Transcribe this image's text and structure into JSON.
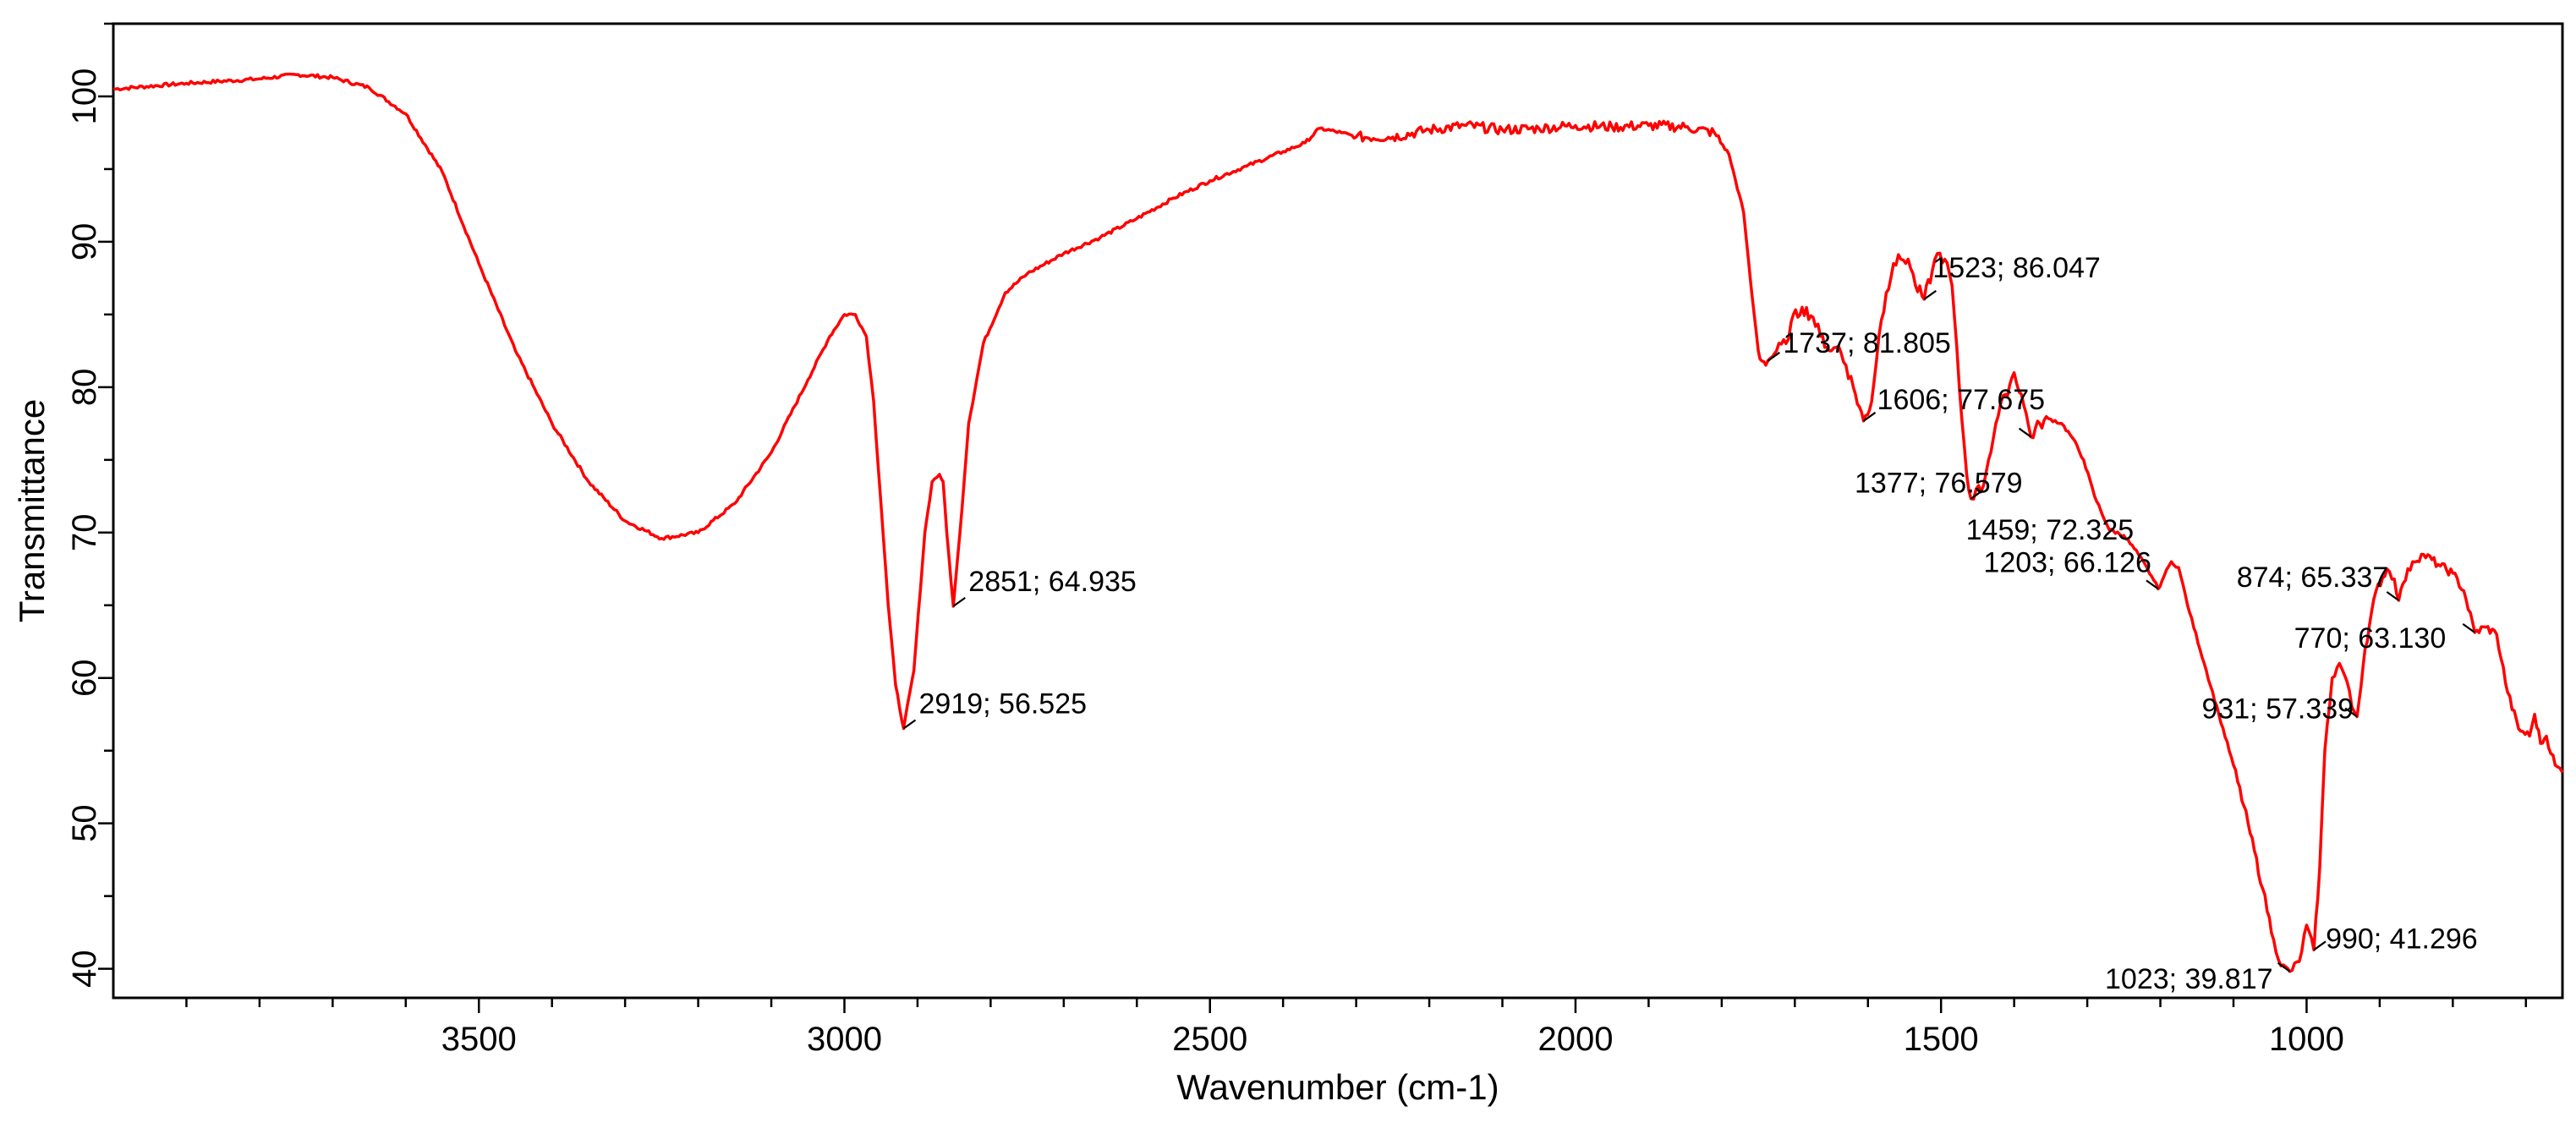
{
  "chart_data": {
    "type": "line",
    "title": "",
    "xlabel": "Wavenumber (cm-1)",
    "ylabel": "Transmittance",
    "xlim": [
      4000,
      650
    ],
    "ylim": [
      38,
      105
    ],
    "x_reversed": true,
    "grid": false,
    "legend": "none",
    "line_color": "#ff0000",
    "x_ticks": [
      {
        "value": 3500,
        "label": "3500"
      },
      {
        "value": 3000,
        "label": "3000"
      },
      {
        "value": 2500,
        "label": "2500"
      },
      {
        "value": 2000,
        "label": "2000"
      },
      {
        "value": 1500,
        "label": "1500"
      },
      {
        "value": 1000,
        "label": "1000"
      }
    ],
    "y_ticks": [
      {
        "value": 40,
        "label": "40"
      },
      {
        "value": 50,
        "label": "50"
      },
      {
        "value": 60,
        "label": "60"
      },
      {
        "value": 70,
        "label": "70"
      },
      {
        "value": 80,
        "label": "80"
      },
      {
        "value": 90,
        "label": "90"
      },
      {
        "value": 100,
        "label": "100"
      }
    ],
    "series": [
      {
        "points": [
          [
            4000,
            100.5
          ],
          [
            3900,
            100.9
          ],
          [
            3800,
            101.2
          ],
          [
            3750,
            101.5
          ],
          [
            3700,
            101.3
          ],
          [
            3650,
            100.6
          ],
          [
            3600,
            98.8
          ],
          [
            3550,
            94.8
          ],
          [
            3500,
            88.5
          ],
          [
            3450,
            82.5
          ],
          [
            3400,
            77.5
          ],
          [
            3350,
            73.5
          ],
          [
            3300,
            70.8
          ],
          [
            3250,
            69.6
          ],
          [
            3200,
            70.0
          ],
          [
            3150,
            72.0
          ],
          [
            3100,
            75.5
          ],
          [
            3050,
            80.5
          ],
          [
            3020,
            83.5
          ],
          [
            3000,
            85.0
          ],
          [
            2985,
            85.0
          ],
          [
            2970,
            83.5
          ],
          [
            2960,
            79.0
          ],
          [
            2950,
            72.0
          ],
          [
            2940,
            65.0
          ],
          [
            2930,
            59.5
          ],
          [
            2919,
            56.525
          ],
          [
            2905,
            60.5
          ],
          [
            2890,
            70.0
          ],
          [
            2880,
            73.5
          ],
          [
            2870,
            74.0
          ],
          [
            2865,
            73.5
          ],
          [
            2860,
            70.0
          ],
          [
            2851,
            64.935
          ],
          [
            2842,
            70.0
          ],
          [
            2830,
            77.5
          ],
          [
            2810,
            83.0
          ],
          [
            2780,
            86.5
          ],
          [
            2750,
            87.8
          ],
          [
            2700,
            89.2
          ],
          [
            2650,
            90.3
          ],
          [
            2600,
            91.6
          ],
          [
            2550,
            93.0
          ],
          [
            2500,
            94.2
          ],
          [
            2450,
            95.2
          ],
          [
            2400,
            96.2
          ],
          [
            2370,
            96.8
          ],
          [
            2350,
            97.8
          ],
          [
            2320,
            97.5
          ],
          [
            2300,
            97.2
          ],
          [
            2250,
            97.2
          ],
          [
            2200,
            97.7
          ],
          [
            2150,
            98.0
          ],
          [
            2100,
            97.7
          ],
          [
            2050,
            97.8
          ],
          [
            2000,
            98.0
          ],
          [
            1950,
            97.9
          ],
          [
            1900,
            98.0
          ],
          [
            1850,
            97.9
          ],
          [
            1810,
            97.5
          ],
          [
            1790,
            96.0
          ],
          [
            1770,
            92.0
          ],
          [
            1760,
            87.0
          ],
          [
            1750,
            82.5
          ],
          [
            1745,
            81.8
          ],
          [
            1737,
            81.805
          ],
          [
            1725,
            82.5
          ],
          [
            1712,
            83.0
          ],
          [
            1705,
            84.5
          ],
          [
            1690,
            85.5
          ],
          [
            1675,
            84.8
          ],
          [
            1665,
            83.5
          ],
          [
            1650,
            82.5
          ],
          [
            1640,
            82.8
          ],
          [
            1630,
            81.5
          ],
          [
            1620,
            80.0
          ],
          [
            1606,
            77.675
          ],
          [
            1595,
            79.0
          ],
          [
            1585,
            83.5
          ],
          [
            1575,
            86.5
          ],
          [
            1565,
            88.5
          ],
          [
            1555,
            88.8
          ],
          [
            1545,
            88.8
          ],
          [
            1535,
            87.0
          ],
          [
            1523,
            86.047
          ],
          [
            1512,
            88.0
          ],
          [
            1505,
            89.2
          ],
          [
            1495,
            88.8
          ],
          [
            1485,
            87.0
          ],
          [
            1475,
            80.0
          ],
          [
            1465,
            74.0
          ],
          [
            1459,
            72.325
          ],
          [
            1452,
            73.0
          ],
          [
            1445,
            72.8
          ],
          [
            1435,
            75.0
          ],
          [
            1425,
            77.5
          ],
          [
            1412,
            79.5
          ],
          [
            1400,
            81.0
          ],
          [
            1390,
            79.5
          ],
          [
            1377,
            76.579
          ],
          [
            1365,
            77.5
          ],
          [
            1350,
            77.8
          ],
          [
            1335,
            77.5
          ],
          [
            1320,
            76.5
          ],
          [
            1305,
            75.0
          ],
          [
            1290,
            72.5
          ],
          [
            1270,
            70.2
          ],
          [
            1250,
            69.8
          ],
          [
            1230,
            68.5
          ],
          [
            1212,
            67.0
          ],
          [
            1203,
            66.126
          ],
          [
            1195,
            67.0
          ],
          [
            1185,
            68.0
          ],
          [
            1175,
            67.6
          ],
          [
            1160,
            64.5
          ],
          [
            1140,
            61.0
          ],
          [
            1120,
            57.5
          ],
          [
            1100,
            54.0
          ],
          [
            1080,
            50.0
          ],
          [
            1060,
            45.5
          ],
          [
            1045,
            42.0
          ],
          [
            1035,
            40.2
          ],
          [
            1023,
            39.817
          ],
          [
            1010,
            40.5
          ],
          [
            1000,
            43.0
          ],
          [
            990,
            41.296
          ],
          [
            982,
            47.0
          ],
          [
            975,
            55.0
          ],
          [
            965,
            60.0
          ],
          [
            955,
            61.0
          ],
          [
            945,
            59.8
          ],
          [
            938,
            58.0
          ],
          [
            931,
            57.339
          ],
          [
            920,
            62.0
          ],
          [
            905,
            66.0
          ],
          [
            890,
            67.5
          ],
          [
            880,
            66.8
          ],
          [
            874,
            65.337
          ],
          [
            868,
            66.5
          ],
          [
            855,
            68.0
          ],
          [
            840,
            68.5
          ],
          [
            820,
            67.8
          ],
          [
            800,
            67.2
          ],
          [
            785,
            66.0
          ],
          [
            770,
            63.13
          ],
          [
            755,
            63.5
          ],
          [
            740,
            63.0
          ],
          [
            725,
            59.0
          ],
          [
            710,
            56.5
          ],
          [
            695,
            56.0
          ],
          [
            688,
            57.5
          ],
          [
            680,
            55.5
          ],
          [
            672,
            56.0
          ],
          [
            660,
            54.0
          ],
          [
            650,
            53.5
          ]
        ]
      }
    ],
    "annotations": [
      {
        "label": "2919; 56.525",
        "x": 2919,
        "y": 56.525
      },
      {
        "label": "2851; 64.935",
        "x": 2851,
        "y": 64.935
      },
      {
        "label": "1737; 81.805",
        "x": 1737,
        "y": 81.805
      },
      {
        "label": "1523; 86.047",
        "x": 1523,
        "y": 86.047
      },
      {
        "label": "1606; 77.675",
        "x": 1606,
        "y": 77.675
      },
      {
        "label": "1377; 76.579",
        "x": 1377,
        "y": 76.579
      },
      {
        "label": "1459; 72.325",
        "x": 1459,
        "y": 72.325
      },
      {
        "label": "1203; 66.126",
        "x": 1203,
        "y": 66.126
      },
      {
        "label": "874; 65.337",
        "x": 874,
        "y": 65.337
      },
      {
        "label": "770; 63.130",
        "x": 770,
        "y": 63.13
      },
      {
        "label": "931; 57.339",
        "x": 931,
        "y": 57.339
      },
      {
        "label": "990; 41.296",
        "x": 990,
        "y": 41.296
      },
      {
        "label": "1023; 39.817",
        "x": 1023,
        "y": 39.817
      }
    ]
  }
}
